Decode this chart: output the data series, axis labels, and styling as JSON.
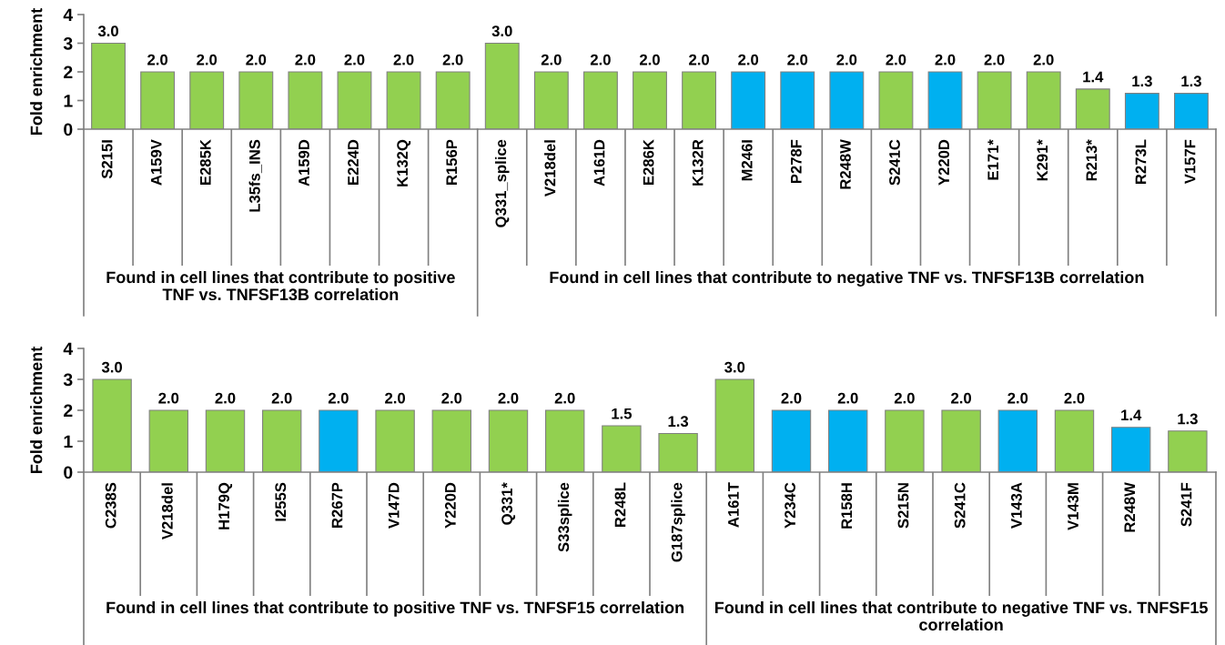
{
  "chart_data": [
    {
      "type": "bar",
      "ylabel": "Fold enrichment",
      "xlabel": "Found in cell lines that contribute to positive TNF vs. TNFSF13B correlation",
      "ylim": [
        0,
        4
      ],
      "yticks": [
        0,
        1,
        2,
        3,
        4
      ],
      "categories": [
        "S215I",
        "A159V",
        "E285K",
        "L35fs_INS",
        "A159D",
        "E224D",
        "K132Q",
        "R156P"
      ],
      "values": [
        3,
        2,
        2,
        2,
        2,
        2,
        2,
        2
      ],
      "value_labels": [
        "3.0",
        "2.0",
        "2.0",
        "2.0",
        "2.0",
        "2.0",
        "2.0",
        "2.0"
      ],
      "colors": [
        "#92d050",
        "#92d050",
        "#92d050",
        "#92d050",
        "#92d050",
        "#92d050",
        "#92d050",
        "#92d050"
      ]
    },
    {
      "type": "bar",
      "xlabel": "Found in cell lines that contribute to negative TNF vs. TNFSF13B correlation",
      "ylim": [
        0,
        4
      ],
      "tick_labels": "x",
      "categories": [
        "Q331_splice",
        "V218del",
        "A161D",
        "E286K",
        "K132R",
        "M246I",
        "P278F",
        "R248W",
        "S241C",
        "Y220D",
        "E171*",
        "K291*",
        "R213*",
        "R273L",
        "V157F"
      ],
      "values": [
        3,
        2,
        2,
        2,
        2,
        2,
        2,
        2,
        2,
        2,
        2,
        2,
        1.4,
        1.25,
        1.25
      ],
      "value_labels": [
        "3.0",
        "2.0",
        "2.0",
        "2.0",
        "2.0",
        "2.0",
        "2.0",
        "2.0",
        "2.0",
        "2.0",
        "2.0",
        "2.0",
        "1.4",
        "1.3",
        "1.3"
      ],
      "colors": [
        "#92d050",
        "#92d050",
        "#92d050",
        "#92d050",
        "#92d050",
        "#00b0f0",
        "#00b0f0",
        "#00b0f0",
        "#92d050",
        "#00b0f0",
        "#92d050",
        "#92d050",
        "#92d050",
        "#00b0f0",
        "#00b0f0"
      ]
    },
    {
      "type": "bar",
      "ylabel": "Fold enrichment",
      "xlabel": "Found in cell lines that contribute to positive TNF vs. TNFSF15 correlation",
      "ylim": [
        0,
        4
      ],
      "yticks": [
        0,
        1,
        2,
        3,
        4
      ],
      "categories": [
        "C238S",
        "V218del",
        "H179Q",
        "I255S",
        "R267P",
        "V147D",
        "Y220D",
        "Q331*",
        "S33splice",
        "R248L",
        "G187splice"
      ],
      "values": [
        3,
        2,
        2,
        2,
        2,
        2,
        2,
        2,
        2,
        1.5,
        1.25
      ],
      "value_labels": [
        "3.0",
        "2.0",
        "2.0",
        "2.0",
        "2.0",
        "2.0",
        "2.0",
        "2.0",
        "2.0",
        "1.5",
        "1.3"
      ],
      "colors": [
        "#92d050",
        "#92d050",
        "#92d050",
        "#92d050",
        "#00b0f0",
        "#92d050",
        "#92d050",
        "#92d050",
        "#92d050",
        "#92d050",
        "#92d050"
      ]
    },
    {
      "type": "bar",
      "xlabel": "Found in cell lines that contribute to negative TNF vs. TNFSF15 correlation",
      "ylim": [
        0,
        4
      ],
      "tick_labels": "x",
      "categories": [
        "A161T",
        "Y234C",
        "R158H",
        "S215N",
        "S241C",
        "V143A",
        "V143M",
        "R248W",
        "S241F"
      ],
      "values": [
        3,
        2,
        2,
        2,
        2,
        2,
        2,
        1.45,
        1.33
      ],
      "value_labels": [
        "3.0",
        "2.0",
        "2.0",
        "2.0",
        "2.0",
        "2.0",
        "2.0",
        "1.4",
        "1.3"
      ],
      "colors": [
        "#92d050",
        "#00b0f0",
        "#00b0f0",
        "#92d050",
        "#92d050",
        "#00b0f0",
        "#92d050",
        "#00b0f0",
        "#92d050"
      ]
    }
  ]
}
